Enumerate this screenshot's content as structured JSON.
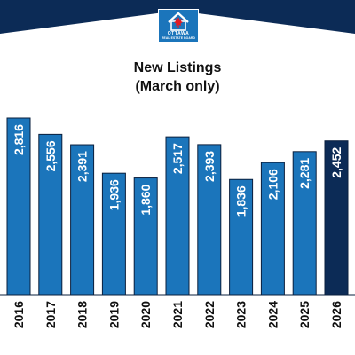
{
  "logo": {
    "line1": "OTTAWA",
    "line2": "REAL ESTATE BOARD",
    "icon": "house-maple-leaf-icon"
  },
  "colors": {
    "banner": "#0c2b56",
    "bar": "#1b75bb",
    "highlight": "#0c2b56",
    "bar_outline": "#0a1f3d",
    "label": "#ffffff",
    "axis_text": "#111111"
  },
  "chart_data": {
    "type": "bar",
    "title": "New Listings",
    "subtitle": "(March only)",
    "categories": [
      "2016",
      "2017",
      "2018",
      "2019",
      "2020",
      "2021",
      "2022",
      "2023",
      "2024",
      "2025",
      "2026"
    ],
    "values": [
      2816,
      2556,
      2391,
      1936,
      1860,
      2517,
      2393,
      1836,
      2106,
      2281,
      2452
    ],
    "value_labels": [
      "2,816",
      "2,556",
      "2,391",
      "1,936",
      "1,860",
      "2,517",
      "2,393",
      "1,836",
      "2,106",
      "2,281",
      "2,452"
    ],
    "highlight_index": 10,
    "ylim": [
      0,
      2816
    ],
    "grid": false,
    "legend": "none"
  }
}
